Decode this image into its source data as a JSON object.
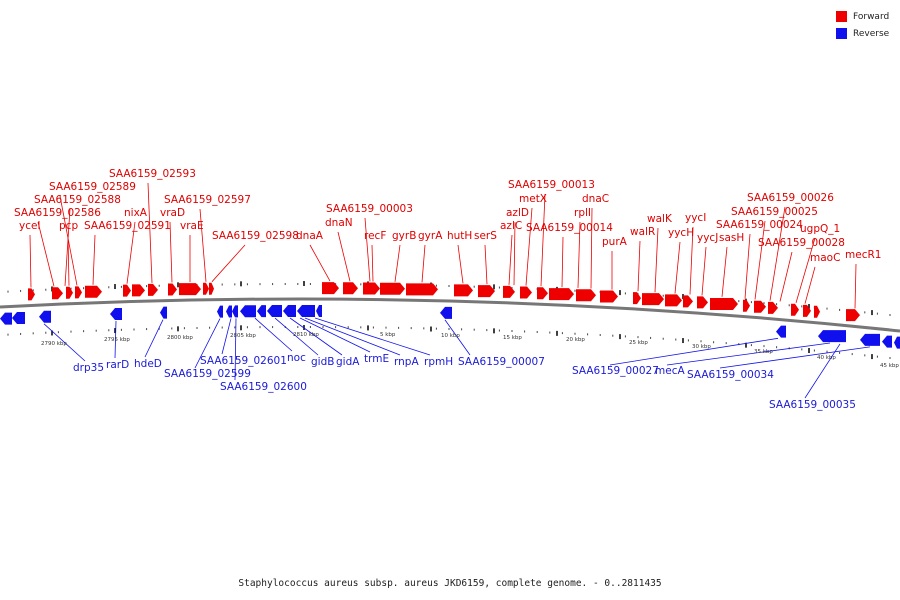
{
  "legend": [
    {
      "label": "Forward",
      "color": "#ee0000"
    },
    {
      "label": "Reverse",
      "color": "#1010ee"
    }
  ],
  "caption": "Staphylococcus aureus subsp. aureus JKD6159, complete genome. - 0..2811435",
  "colors": {
    "forward": "#ee0000",
    "reverse": "#1010ee",
    "backbone": "#777777"
  },
  "kbp_labels": [
    "2790 kbp",
    "2795 kbp",
    "2800 kbp",
    "2805 kbp",
    "2810 kbp",
    "5 kbp",
    "10 kbp",
    "15 kbp",
    "20 kbp",
    "25 kbp",
    "30 kbp",
    "35 kbp",
    "40 kbp",
    "45 kbp"
  ],
  "forward_labels": [
    "ycel",
    "SAA6159_02586",
    "SAA6159_02588",
    "pcp",
    "SAA6159_02589",
    "SAA6159_02591",
    "nixA",
    "SAA6159_02593",
    "vraD",
    "vraE",
    "SAA6159_02597",
    "SAA6159_02598",
    "dnaA",
    "dnaN",
    "SAA6159_00003",
    "recF",
    "gyrB",
    "gyrA",
    "hutH",
    "serS",
    "azlC",
    "azlD",
    "metX",
    "SAA6159_00013",
    "SAA6159_00014",
    "rplI",
    "dnaC",
    "purA",
    "walR",
    "walK",
    "yycH",
    "yycI",
    "yycJ",
    "sasH",
    "SAA6159_00024",
    "SAA6159_00025",
    "SAA6159_00026",
    "SAA6159_00028",
    "ugpQ_1",
    "maoC",
    "mecR1"
  ],
  "reverse_labels": [
    "drp35",
    "rarD",
    "hdeD",
    "SAA6159_02599",
    "SAA6159_02601",
    "SAA6159_02600",
    "noc",
    "gidB",
    "gidA",
    "trmE",
    "rnpA",
    "rpmH",
    "SAA6159_00007",
    "SAA6159_00027",
    "mecA",
    "SAA6159_00034",
    "SAA6159_00035"
  ]
}
